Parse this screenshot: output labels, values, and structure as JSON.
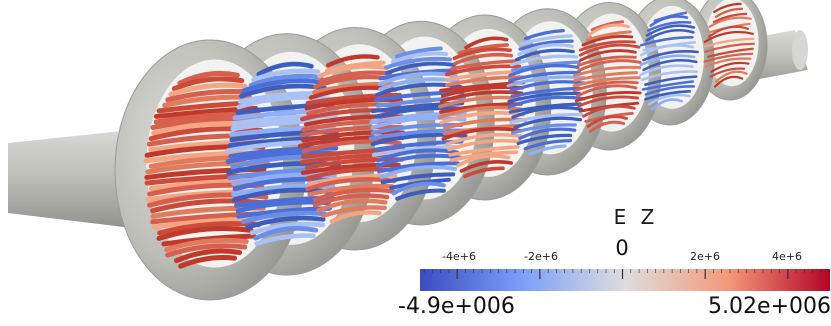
{
  "colorbar": {
    "title": "E Z",
    "min_label": "-4.9e+006",
    "max_label": "5.02e+006",
    "zero_label": "0",
    "ticks": [
      {
        "label": "-4e+6",
        "value": -4000000
      },
      {
        "label": "-2e+6",
        "value": -2000000
      },
      {
        "label": "2e+6",
        "value": 2000000
      },
      {
        "label": "4e+6",
        "value": 4000000
      }
    ],
    "range": [
      -4900000,
      5020000
    ],
    "colors": {
      "low": "#3b4cc0",
      "mid": "#dddddd",
      "high": "#b40426"
    }
  },
  "scene": {
    "background": "#ffffff",
    "cavity_color": "#c7c7c2",
    "cells": [
      {
        "sign": "positive"
      },
      {
        "sign": "negative"
      },
      {
        "sign": "positive"
      },
      {
        "sign": "negative"
      },
      {
        "sign": "positive"
      },
      {
        "sign": "negative"
      },
      {
        "sign": "positive"
      },
      {
        "sign": "negative"
      },
      {
        "sign": "positive"
      }
    ]
  }
}
